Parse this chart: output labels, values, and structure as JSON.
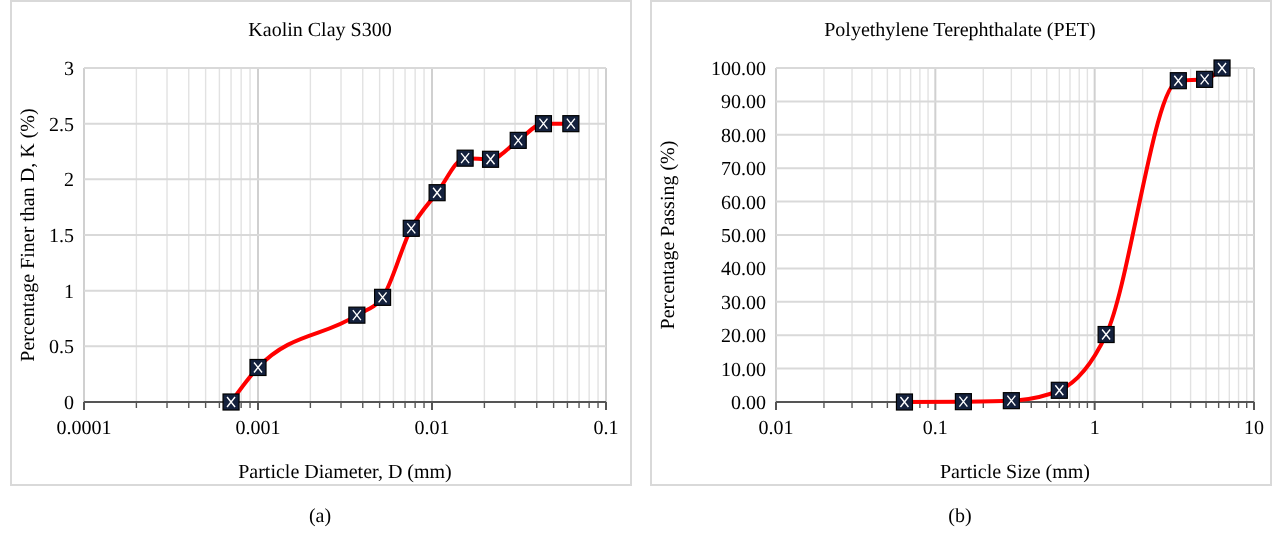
{
  "chart_data": [
    {
      "type": "line",
      "title": "Kaolin Clay S300",
      "xlabel": "Particle Diameter, D (mm)",
      "ylabel": "Percentage  Finer than D, K (%)",
      "log": "x",
      "x": [
        0.0007,
        0.001,
        0.0037,
        0.0052,
        0.0076,
        0.0107,
        0.0155,
        0.0217,
        0.0313,
        0.0437,
        0.0628
      ],
      "series": [
        {
          "color": "#ff0000",
          "values": [
            0,
            0.31,
            0.78,
            0.94,
            1.56,
            1.88,
            2.19,
            2.18,
            2.35,
            2.5,
            2.5
          ]
        }
      ],
      "xlim": [
        0.0001,
        0.1
      ],
      "xticks": [
        0.0001,
        0.001,
        0.01,
        0.1
      ],
      "ylim": [
        0,
        3
      ],
      "yticks": [
        0,
        0.5,
        1,
        1.5,
        2,
        2.5,
        3
      ],
      "grid": true,
      "marker": "square",
      "annotations": [
        "(a)"
      ]
    },
    {
      "type": "line",
      "title": "Polyethylene Terephthalate (PET)",
      "xlabel": "Particle Size (mm)",
      "ylabel": "Percentage  Passing  (%)",
      "log": "x",
      "x": [
        0.064,
        0.15,
        0.3,
        0.6,
        1.18,
        3.35,
        4.9,
        6.3
      ],
      "series": [
        {
          "color": "#ff0000",
          "values": [
            0,
            0.1,
            0.4,
            3.5,
            20.2,
            96.2,
            96.6,
            100
          ]
        }
      ],
      "xlim": [
        0.01,
        10
      ],
      "xticks": [
        0.01,
        0.1,
        1,
        10
      ],
      "ylim": [
        0,
        100
      ],
      "yticks": [
        {
          "value": 0,
          "label": "0.00"
        },
        {
          "value": 10,
          "label": "10.00"
        },
        {
          "value": 20,
          "label": "20.00"
        },
        {
          "value": 30,
          "label": "30.00"
        },
        {
          "value": 40,
          "label": "40.00"
        },
        {
          "value": 50,
          "label": "50.00"
        },
        {
          "value": 60,
          "label": "60.00"
        },
        {
          "value": 70,
          "label": "70.00"
        },
        {
          "value": 80,
          "label": "80.00"
        },
        {
          "value": 90,
          "label": "90.00"
        },
        {
          "value": 100,
          "label": "100.00"
        }
      ],
      "grid": true,
      "marker": "square",
      "annotations": [
        "(b)"
      ]
    }
  ]
}
